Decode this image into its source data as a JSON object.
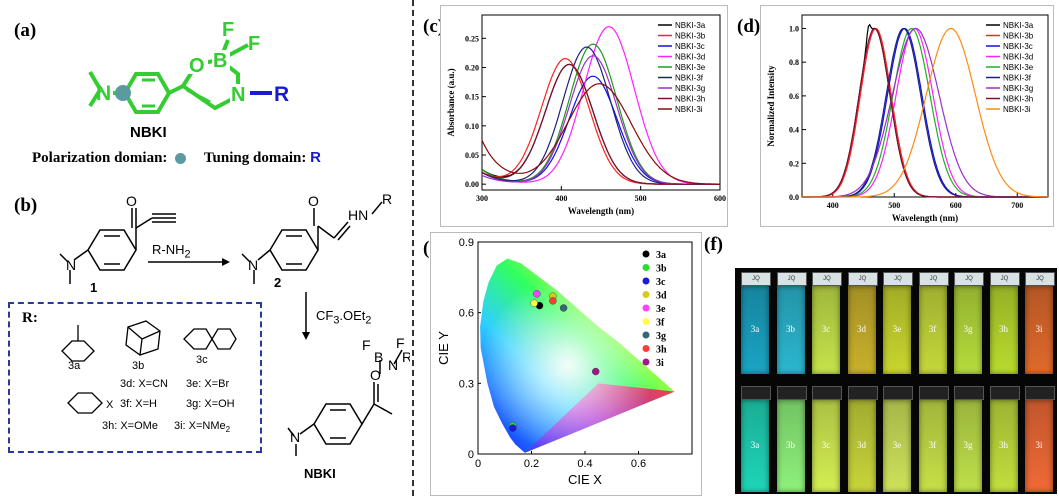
{
  "panels": {
    "a": {
      "label": "(a)",
      "molecule_name": "NBKI",
      "atoms": {
        "F1": "F",
        "F2": "F",
        "B": "B",
        "O": "O",
        "N_ring": "N",
        "R": "R",
        "N_amine": "N"
      },
      "polarization_text": "Polarization domian:",
      "tuning_text": "Tuning domain:",
      "tuning_symbol": "R",
      "colors": {
        "green": "#33cc33",
        "teal_dot": "#5a9aa0",
        "blue": "#1a1ad0"
      }
    },
    "b": {
      "label": "(b)",
      "reagent": "R-NH",
      "reagent_sub": "2",
      "reagent2": "CF",
      "reagent2_sub": "3",
      "reagent2_rest": ".OEt",
      "reagent2_sub2": "2",
      "compound1": "1",
      "compound2": "2",
      "atoms": {
        "O1": "O",
        "O2": "O",
        "HN": "HN",
        "R2": "R",
        "N1": "N",
        "N2": "N",
        "F1": "F",
        "F2": "F",
        "B": "B",
        "O3": "O",
        "N3": "N",
        "R3": "R",
        "N4": "N"
      },
      "product": "NBKI",
      "box_title": "R:",
      "substituents": {
        "s3a": "3a",
        "s3b": "3b",
        "s3c": "3c",
        "l3d": "3d: X=CN",
        "l3e": "3e: X=Br",
        "l3f": "3f: X=H",
        "l3g": "3g: X=OH",
        "l3h": "3h: X=OMe",
        "l3i_main": "3i: X=NMe",
        "l3i_sub": "2",
        "x_label": "X"
      }
    },
    "c": {
      "label": "(c)"
    },
    "d": {
      "label": "(d)"
    },
    "e": {
      "label": "(e)"
    },
    "f": {
      "label": "(f)",
      "top_labels": [
        "3a",
        "3b",
        "3c",
        "3d",
        "3e",
        "3f",
        "3g",
        "3h",
        "3i"
      ],
      "bottom_labels": [
        "3a",
        "3b",
        "3c",
        "3d",
        "3e",
        "3f",
        "3g",
        "3h",
        "3i"
      ],
      "cap_text": "JQ",
      "top_colors": [
        "#1aa4c4",
        "#2bb7d0",
        "#c6e34a",
        "#c9b12c",
        "#c9d62e",
        "#c6d83a",
        "#b6dc3c",
        "#b9db2d",
        "#e06a2c"
      ],
      "bottom_colors": [
        "#1fd6b8",
        "#8ef27b",
        "#d4ef52",
        "#c8d53a",
        "#cfe25a",
        "#c8e048",
        "#bfe04a",
        "#c2df3d",
        "#f06a36"
      ]
    }
  },
  "chart_data": [
    {
      "type": "line",
      "panel": "c",
      "xlabel": "Wavelength (nm)",
      "ylabel": "Absorbance (a.u.)",
      "xlim": [
        300,
        600
      ],
      "ylim": [
        -0.01,
        0.29
      ],
      "xticks": [
        300,
        400,
        500,
        600
      ],
      "yticks": [
        0.0,
        0.05,
        0.1,
        0.15,
        0.2,
        0.25
      ],
      "ytick_labels": [
        "0.00",
        "0.05",
        "0.10",
        "0.15",
        "0.20",
        "0.25"
      ],
      "legend_position": "top-right",
      "series": [
        {
          "name": "NBKI-3a",
          "color": "#000000",
          "peak_x": 410,
          "peak_y": 0.205,
          "width": 30,
          "start_y": 0.025
        },
        {
          "name": "NBKI-3b",
          "color": "#ff2020",
          "peak_x": 405,
          "peak_y": 0.215,
          "width": 30,
          "start_y": 0.02
        },
        {
          "name": "NBKI-3c",
          "color": "#1010e0",
          "peak_x": 440,
          "peak_y": 0.185,
          "width": 30,
          "start_y": 0.02
        },
        {
          "name": "NBKI-3d",
          "color": "#ff20ff",
          "peak_x": 460,
          "peak_y": 0.27,
          "width": 32,
          "start_y": 0.02
        },
        {
          "name": "NBKI-3e",
          "color": "#1f9a1f",
          "peak_x": 440,
          "peak_y": 0.24,
          "width": 30,
          "start_y": 0.025
        },
        {
          "name": "NBKI-3f",
          "color": "#1a237e",
          "peak_x": 432,
          "peak_y": 0.235,
          "width": 30,
          "start_y": 0.02
        },
        {
          "name": "NBKI-3g",
          "color": "#9a30c8",
          "peak_x": 440,
          "peak_y": 0.22,
          "width": 30,
          "start_y": 0.015
        },
        {
          "name": "NBKI-3h",
          "color": "#7a1230",
          "peak_x": 410,
          "peak_y": 0.205,
          "width": 30,
          "start_y": 0.02
        },
        {
          "name": "NBKI-3i",
          "color": "#8a0a0a",
          "peak_x": 448,
          "peak_y": 0.172,
          "width": 40,
          "start_y": 0.075
        }
      ]
    },
    {
      "type": "line",
      "panel": "d",
      "xlabel": "Wavelength (nm)",
      "ylabel": "Normalized Intensity",
      "xlim": [
        350,
        750
      ],
      "ylim": [
        0,
        1.08
      ],
      "xticks": [
        400,
        500,
        600,
        700
      ],
      "yticks": [
        0.0,
        0.2,
        0.4,
        0.6,
        0.8,
        1.0
      ],
      "ytick_labels": [
        "0.0",
        "0.2",
        "0.4",
        "0.6",
        "0.8",
        "1.0"
      ],
      "legend_position": "top-right",
      "series": [
        {
          "name": "NBKI-3a",
          "color": "#000000",
          "peak_x": 468,
          "width": 25
        },
        {
          "name": "NBKI-3b",
          "color": "#ff2020",
          "peak_x": 470,
          "width": 25
        },
        {
          "name": "NBKI-3c",
          "color": "#1010e0",
          "peak_x": 517,
          "width": 28
        },
        {
          "name": "NBKI-3d",
          "color": "#ff20ff",
          "peak_x": 533,
          "width": 30
        },
        {
          "name": "NBKI-3e",
          "color": "#20b020",
          "peak_x": 528,
          "width": 30
        },
        {
          "name": "NBKI-3f",
          "color": "#1a237e",
          "peak_x": 515,
          "width": 28
        },
        {
          "name": "NBKI-3g",
          "color": "#9a30c8",
          "peak_x": 535,
          "width": 38
        },
        {
          "name": "NBKI-3h",
          "color": "#7a1230",
          "peak_x": 468,
          "width": 25
        },
        {
          "name": "NBKI-3i",
          "color": "#ff8a10",
          "peak_x": 592,
          "width": 40
        }
      ]
    },
    {
      "type": "scatter",
      "panel": "e",
      "xlabel": "CIE X",
      "ylabel": "CIE Y",
      "xlim": [
        0,
        0.8
      ],
      "ylim": [
        0,
        0.9
      ],
      "xticks": [
        0,
        0.2,
        0.4,
        0.6
      ],
      "yticks": [
        0,
        0.3,
        0.6,
        0.9
      ],
      "xtick_labels": [
        "0",
        "0.2",
        "0.4",
        "0.6"
      ],
      "ytick_labels": [
        "0",
        "0.3",
        "0.6",
        "0.9"
      ],
      "legend_position": "top-right",
      "points": [
        {
          "name": "3a",
          "color": "#000000",
          "x": 0.23,
          "y": 0.63
        },
        {
          "name": "3b",
          "color": "#2ddc2d",
          "x": 0.13,
          "y": 0.12
        },
        {
          "name": "3c",
          "color": "#1a1ad6",
          "x": 0.13,
          "y": 0.11
        },
        {
          "name": "3d",
          "color": "#d8c91a",
          "x": 0.28,
          "y": 0.67
        },
        {
          "name": "3e",
          "color": "#ff40ff",
          "x": 0.22,
          "y": 0.68
        },
        {
          "name": "3f",
          "color": "#ffff40",
          "x": 0.21,
          "y": 0.64
        },
        {
          "name": "3g",
          "color": "#336677",
          "x": 0.32,
          "y": 0.62
        },
        {
          "name": "3h",
          "color": "#ff3a3a",
          "x": 0.28,
          "y": 0.65
        },
        {
          "name": "3i",
          "color": "#9a1a8a",
          "x": 0.44,
          "y": 0.35
        }
      ]
    }
  ]
}
